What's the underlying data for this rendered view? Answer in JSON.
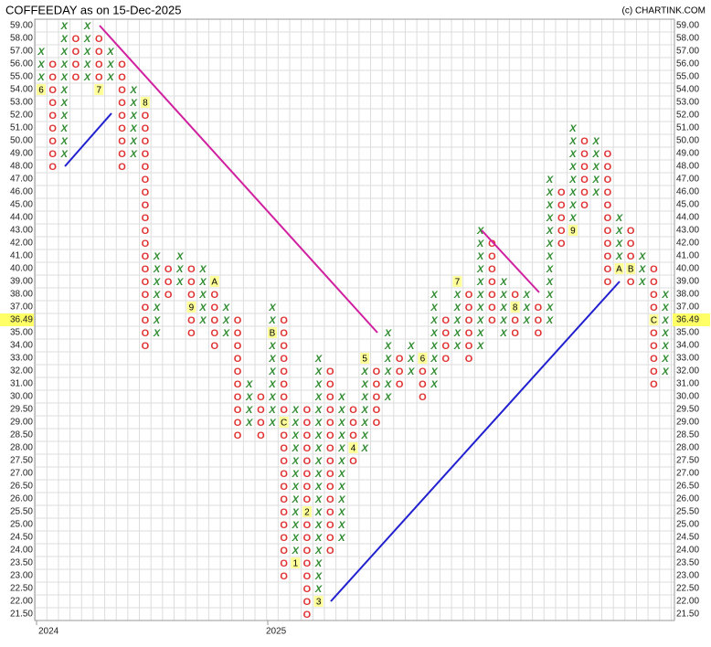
{
  "chart_data": {
    "type": "point-and-figure",
    "title": "COFFEEDAY as on 15-Dec-2025",
    "credit": "(c) CHARTINK.COM",
    "last_price": 36.49,
    "x_color": "#2e8b2e",
    "o_color": "#e03030",
    "yticks": [
      {
        "value": 59,
        "label": "59.00"
      },
      {
        "value": 58,
        "label": "58.00"
      },
      {
        "value": 57,
        "label": "57.00"
      },
      {
        "value": 56,
        "label": "56.00"
      },
      {
        "value": 55,
        "label": "55.00"
      },
      {
        "value": 54,
        "label": "54.00"
      },
      {
        "value": 53,
        "label": "53.00"
      },
      {
        "value": 52,
        "label": "52.00"
      },
      {
        "value": 51,
        "label": "51.00"
      },
      {
        "value": 50,
        "label": "50.00"
      },
      {
        "value": 49,
        "label": "49.00"
      },
      {
        "value": 48,
        "label": "48.00"
      },
      {
        "value": 47,
        "label": "47.00"
      },
      {
        "value": 46,
        "label": "46.00"
      },
      {
        "value": 45,
        "label": "45.00"
      },
      {
        "value": 44,
        "label": "44.00"
      },
      {
        "value": 43,
        "label": "43.00"
      },
      {
        "value": 42,
        "label": "42.00"
      },
      {
        "value": 41,
        "label": "41.00"
      },
      {
        "value": 40,
        "label": "40.00"
      },
      {
        "value": 39,
        "label": "39.00"
      },
      {
        "value": 38,
        "label": "38.00"
      },
      {
        "value": 37,
        "label": "37.00"
      },
      {
        "value": 36,
        "label": "36.00"
      },
      {
        "value": 35,
        "label": "35.00"
      },
      {
        "value": 34,
        "label": "34.00"
      },
      {
        "value": 33,
        "label": "33.00"
      },
      {
        "value": 32,
        "label": "32.00"
      },
      {
        "value": 31,
        "label": "31.00"
      },
      {
        "value": 30,
        "label": "30.00"
      },
      {
        "value": 29.5,
        "label": "29.50"
      },
      {
        "value": 29,
        "label": "29.00"
      },
      {
        "value": 28.5,
        "label": "28.50"
      },
      {
        "value": 28,
        "label": "28.00"
      },
      {
        "value": 27.5,
        "label": "27.50"
      },
      {
        "value": 27,
        "label": "27.00"
      },
      {
        "value": 26.5,
        "label": "26.50"
      },
      {
        "value": 26,
        "label": "26.00"
      },
      {
        "value": 25.5,
        "label": "25.50"
      },
      {
        "value": 25,
        "label": "25.00"
      },
      {
        "value": 24.5,
        "label": "24.50"
      },
      {
        "value": 24,
        "label": "24.00"
      },
      {
        "value": 23.5,
        "label": "23.50"
      },
      {
        "value": 23,
        "label": "23.00"
      },
      {
        "value": 22.5,
        "label": "22.50"
      },
      {
        "value": 22,
        "label": "22.00"
      },
      {
        "value": 21.5,
        "label": "21.50"
      }
    ],
    "columns": [
      {
        "type": "X",
        "low": 54,
        "high": 57,
        "year": "2024",
        "markers": [
          {
            "value": 54,
            "label": "6"
          }
        ]
      },
      {
        "type": "O",
        "low": 48,
        "high": 56
      },
      {
        "type": "X",
        "low": 49,
        "high": 59
      },
      {
        "type": "O",
        "low": 55,
        "high": 58
      },
      {
        "type": "X",
        "low": 55,
        "high": 59
      },
      {
        "type": "O",
        "low": 54,
        "high": 58,
        "markers": [
          {
            "value": 54,
            "label": "7"
          }
        ]
      },
      {
        "type": "X",
        "low": 55,
        "high": 57
      },
      {
        "type": "O",
        "low": 48,
        "high": 56
      },
      {
        "type": "X",
        "low": 49,
        "high": 54
      },
      {
        "type": "O",
        "low": 34,
        "high": 53,
        "markers": [
          {
            "value": 53,
            "label": "8"
          }
        ]
      },
      {
        "type": "X",
        "low": 35,
        "high": 41
      },
      {
        "type": "O",
        "low": 38,
        "high": 40
      },
      {
        "type": "X",
        "low": 39,
        "high": 41
      },
      {
        "type": "O",
        "low": 35,
        "high": 40,
        "markers": [
          {
            "value": 37,
            "label": "9"
          }
        ]
      },
      {
        "type": "X",
        "low": 36,
        "high": 40
      },
      {
        "type": "O",
        "low": 34,
        "high": 39,
        "markers": [
          {
            "value": 39,
            "label": "A"
          }
        ]
      },
      {
        "type": "X",
        "low": 35,
        "high": 37
      },
      {
        "type": "O",
        "low": 28.5,
        "high": 36
      },
      {
        "type": "X",
        "low": 29,
        "high": 31
      },
      {
        "type": "O",
        "low": 28.5,
        "high": 30
      },
      {
        "type": "X",
        "low": 29,
        "high": 37,
        "year": "2025",
        "markers": [
          {
            "value": 35,
            "label": "B"
          }
        ]
      },
      {
        "type": "O",
        "low": 23,
        "high": 36,
        "markers": [
          {
            "value": 29,
            "label": "C"
          }
        ]
      },
      {
        "type": "X",
        "low": 23.5,
        "high": 29.5,
        "markers": [
          {
            "value": 23.5,
            "label": "1"
          }
        ]
      },
      {
        "type": "O",
        "low": 21.5,
        "high": 29.5,
        "markers": [
          {
            "value": 25.5,
            "label": "2"
          }
        ]
      },
      {
        "type": "X",
        "low": 22,
        "high": 33,
        "markers": [
          {
            "value": 22,
            "label": "3"
          }
        ]
      },
      {
        "type": "O",
        "low": 24,
        "high": 32
      },
      {
        "type": "X",
        "low": 24.5,
        "high": 30
      },
      {
        "type": "O",
        "low": 27.5,
        "high": 29.5,
        "markers": [
          {
            "value": 28,
            "label": "4"
          }
        ]
      },
      {
        "type": "X",
        "low": 28,
        "high": 33,
        "markers": [
          {
            "value": 33,
            "label": "5"
          }
        ]
      },
      {
        "type": "O",
        "low": 29,
        "high": 32
      },
      {
        "type": "X",
        "low": 30,
        "high": 35
      },
      {
        "type": "O",
        "low": 31,
        "high": 33
      },
      {
        "type": "X",
        "low": 32,
        "high": 34
      },
      {
        "type": "O",
        "low": 30,
        "high": 33,
        "markers": [
          {
            "value": 33,
            "label": "6"
          }
        ]
      },
      {
        "type": "X",
        "low": 31,
        "high": 38
      },
      {
        "type": "O",
        "low": 33,
        "high": 36
      },
      {
        "type": "X",
        "low": 34,
        "high": 39,
        "markers": [
          {
            "value": 39,
            "label": "7"
          }
        ]
      },
      {
        "type": "O",
        "low": 33,
        "high": 38
      },
      {
        "type": "X",
        "low": 34,
        "high": 43
      },
      {
        "type": "O",
        "low": 36,
        "high": 42
      },
      {
        "type": "X",
        "low": 35,
        "high": 39
      },
      {
        "type": "O",
        "low": 35,
        "high": 38,
        "markers": [
          {
            "value": 37,
            "label": "8"
          }
        ]
      },
      {
        "type": "X",
        "low": 36,
        "high": 38
      },
      {
        "type": "O",
        "low": 35,
        "high": 37
      },
      {
        "type": "X",
        "low": 36,
        "high": 47
      },
      {
        "type": "O",
        "low": 42,
        "high": 46
      },
      {
        "type": "X",
        "low": 43,
        "high": 51,
        "markers": [
          {
            "value": 43,
            "label": "9"
          }
        ]
      },
      {
        "type": "O",
        "low": 45,
        "high": 50
      },
      {
        "type": "X",
        "low": 46,
        "high": 50
      },
      {
        "type": "O",
        "low": 39,
        "high": 49
      },
      {
        "type": "X",
        "low": 40,
        "high": 44,
        "markers": [
          {
            "value": 40,
            "label": "A"
          }
        ]
      },
      {
        "type": "O",
        "low": 39,
        "high": 43,
        "markers": [
          {
            "value": 40,
            "label": "B"
          }
        ]
      },
      {
        "type": "X",
        "low": 39,
        "high": 41
      },
      {
        "type": "O",
        "low": 31,
        "high": 40,
        "markers": [
          {
            "value": 36,
            "label": "C"
          }
        ]
      },
      {
        "type": "X",
        "low": 32,
        "high": 38
      }
    ]
  }
}
